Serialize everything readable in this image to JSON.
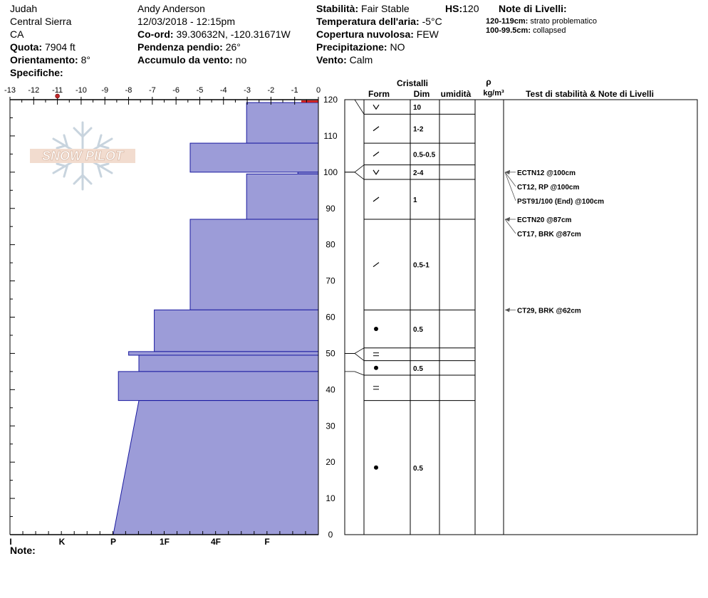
{
  "header": {
    "location": "Judah",
    "range": "Central Sierra",
    "state": "CA",
    "elevation_label": "Quota:",
    "elevation_value": "7904 ft",
    "aspect_label": "Orientamento:",
    "aspect_value": "8°",
    "specifics_label": "Specifiche:",
    "observer": "Andy Anderson",
    "datetime": "12/03/2018 - 12:15pm",
    "coord_label": "Co-ord:",
    "coord_value": "39.30632N, -120.31671W",
    "slope_label": "Pendenza pendio:",
    "slope_value": "26°",
    "wind_load_label": "Accumulo da vento:",
    "wind_load_value": "no",
    "stability_label": "Stabilità:",
    "stability_value": "Fair Stable",
    "hs_label": "HS:",
    "hs_value": "120",
    "air_temp_label": "Temperatura dell'aria:",
    "air_temp_value": "-5°C",
    "cloud_label": "Copertura nuvolosa:",
    "cloud_value": "FEW",
    "precip_label": "Precipitazione:",
    "precip_value": "NO",
    "wind_label": "Vento:",
    "wind_value": "Calm",
    "layer_notes_title": "Note di Livelli:",
    "layer_notes": [
      {
        "range": "120-119cm:",
        "text": "strato problematico"
      },
      {
        "range": "100-99.5cm:",
        "text": "collapsed"
      }
    ]
  },
  "logo_text": "SNOW PILOT",
  "note_label": "Note:",
  "columns": {
    "crystals": "Cristalli",
    "form": "Form",
    "size": "Dim",
    "moisture": "umidità",
    "rho": "ρ",
    "density_unit": "kg/m³",
    "tests": "Test di stabilità & Note di Livelli"
  },
  "colors": {
    "hardness_fill": "#9c9cd8",
    "hardness_stroke": "#1a1aa0",
    "problem_layer": "#cc2222",
    "temp_point": "#c0262a"
  },
  "chart_data": {
    "type": "snow_profile",
    "temperature_axis": {
      "min": -13,
      "max": 0,
      "ticks": [
        "-13",
        "-12",
        "-11",
        "-10",
        "-9",
        "-8",
        "-7",
        "-6",
        "-5",
        "-4",
        "-3",
        "-2",
        "-1",
        "0"
      ]
    },
    "height_axis": {
      "min": 0,
      "max": 120,
      "ticks": [
        "0",
        "10",
        "20",
        "30",
        "40",
        "50",
        "60",
        "70",
        "80",
        "90",
        "100",
        "110",
        "120"
      ]
    },
    "hardness_axis": {
      "labels": [
        "I",
        "K",
        "P",
        "1F",
        "4F",
        "F"
      ],
      "values": [
        6,
        5,
        4,
        3,
        2,
        1
      ]
    },
    "temperature_profile": [
      {
        "temp": -11,
        "height": 121
      }
    ],
    "hardness_profile": [
      {
        "top": 119.2,
        "bottom": 108,
        "hardness": 1.4
      },
      {
        "top": 108,
        "bottom": 100,
        "hardness": 2.5
      },
      {
        "top": 100,
        "bottom": 99.5,
        "hardness": 0.4
      },
      {
        "top": 99.5,
        "bottom": 87,
        "hardness": 1.4
      },
      {
        "top": 87,
        "bottom": 62,
        "hardness": 2.5
      },
      {
        "top": 62,
        "bottom": 50.5,
        "hardness": 3.2
      },
      {
        "top": 50.5,
        "bottom": 49.5,
        "hardness": 3.7
      },
      {
        "top": 49.5,
        "bottom": 45,
        "hardness": 3.5
      },
      {
        "top": 45,
        "bottom": 37,
        "hardness": 3.9
      },
      {
        "top": 37,
        "bottom": 0,
        "hardness_top": 3.5,
        "hardness_bottom": 4.0
      }
    ],
    "layers": [
      {
        "top": 120,
        "bottom": 116,
        "form": "v",
        "size": "10"
      },
      {
        "top": 116,
        "bottom": 108,
        "form": "/",
        "size": "1-2"
      },
      {
        "top": 108,
        "bottom": 102,
        "form": "/",
        "size": "0.5-0.5"
      },
      {
        "top": 102,
        "bottom": 98,
        "form": "v",
        "size": "2-4"
      },
      {
        "top": 98,
        "bottom": 87,
        "form": "/",
        "size": "1"
      },
      {
        "top": 87,
        "bottom": 62,
        "form": "/",
        "size": "0.5-1"
      },
      {
        "top": 62,
        "bottom": 51.5,
        "form": "dot",
        "size": "0.5"
      },
      {
        "top": 51.5,
        "bottom": 48,
        "form": "=",
        "size": ""
      },
      {
        "top": 48,
        "bottom": 44,
        "form": "dot",
        "size": "0.5"
      },
      {
        "top": 44,
        "bottom": 37,
        "form": "=",
        "size": ""
      },
      {
        "top": 37,
        "bottom": 0,
        "form": "dot",
        "size": "0.5"
      }
    ],
    "tests": [
      {
        "height": 100,
        "text": "ECTN12 @100cm"
      },
      {
        "height": 100,
        "text": "CT12, RP @100cm"
      },
      {
        "height": 100,
        "text": "PST91/100 (End) @100cm"
      },
      {
        "height": 87,
        "text": "ECTN20 @87cm"
      },
      {
        "height": 87,
        "text": "CT17, BRK @87cm"
      },
      {
        "height": 62,
        "text": "CT29, BRK @62cm"
      }
    ]
  }
}
